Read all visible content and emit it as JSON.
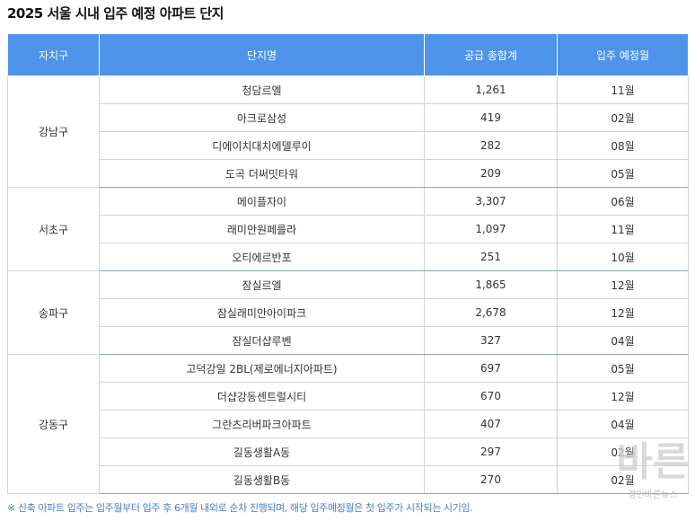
{
  "title": "2025 서울 시내 입주 예정 아파트 단지",
  "headers": {
    "district": "자치구",
    "complex": "단지명",
    "supply": "공급 총합계",
    "month": "입주 예정월"
  },
  "groups": [
    {
      "district": "강남구",
      "rows": [
        {
          "name": "청담르엘",
          "supply": "1,261",
          "month": "11월"
        },
        {
          "name": "아크로삼성",
          "supply": "419",
          "month": "02월"
        },
        {
          "name": "디에이치대치에델루이",
          "supply": "282",
          "month": "08월"
        },
        {
          "name": "도곡 더써밋타워",
          "supply": "209",
          "month": "05월"
        }
      ]
    },
    {
      "district": "서초구",
      "rows": [
        {
          "name": "메이플자이",
          "supply": "3,307",
          "month": "06월"
        },
        {
          "name": "래미안원페를라",
          "supply": "1,097",
          "month": "11월"
        },
        {
          "name": "오티에르반포",
          "supply": "251",
          "month": "10월"
        }
      ]
    },
    {
      "district": "송파구",
      "rows": [
        {
          "name": "잠실르엘",
          "supply": "1,865",
          "month": "12월"
        },
        {
          "name": "잠실래미안아이파크",
          "supply": "2,678",
          "month": "12월"
        },
        {
          "name": "잠실더샵루벤",
          "supply": "327",
          "month": "04월"
        }
      ]
    },
    {
      "district": "강동구",
      "rows": [
        {
          "name": "고덕강일 2BL(제로에너지아파트)",
          "supply": "697",
          "month": "05월"
        },
        {
          "name": "더샵강동센트럴시티",
          "supply": "670",
          "month": "12월"
        },
        {
          "name": "그란츠리버파크아파트",
          "supply": "407",
          "month": "04월"
        },
        {
          "name": "길동생활A동",
          "supply": "297",
          "month": "02월"
        },
        {
          "name": "길동생활B동",
          "supply": "270",
          "month": "02월"
        }
      ]
    }
  ],
  "footnote": "※ 신축 아파트 입주는 입주월부터 입주 후 6개월 내외로 순차 진행되며, 해당 입주예정월은 첫 입주가 시작되는 시기임.",
  "watermark": {
    "logo": "바른",
    "text": "경인바른뉴스"
  },
  "colors": {
    "header_bg": "#4d94ea",
    "footnote": "#4a7fc4"
  }
}
